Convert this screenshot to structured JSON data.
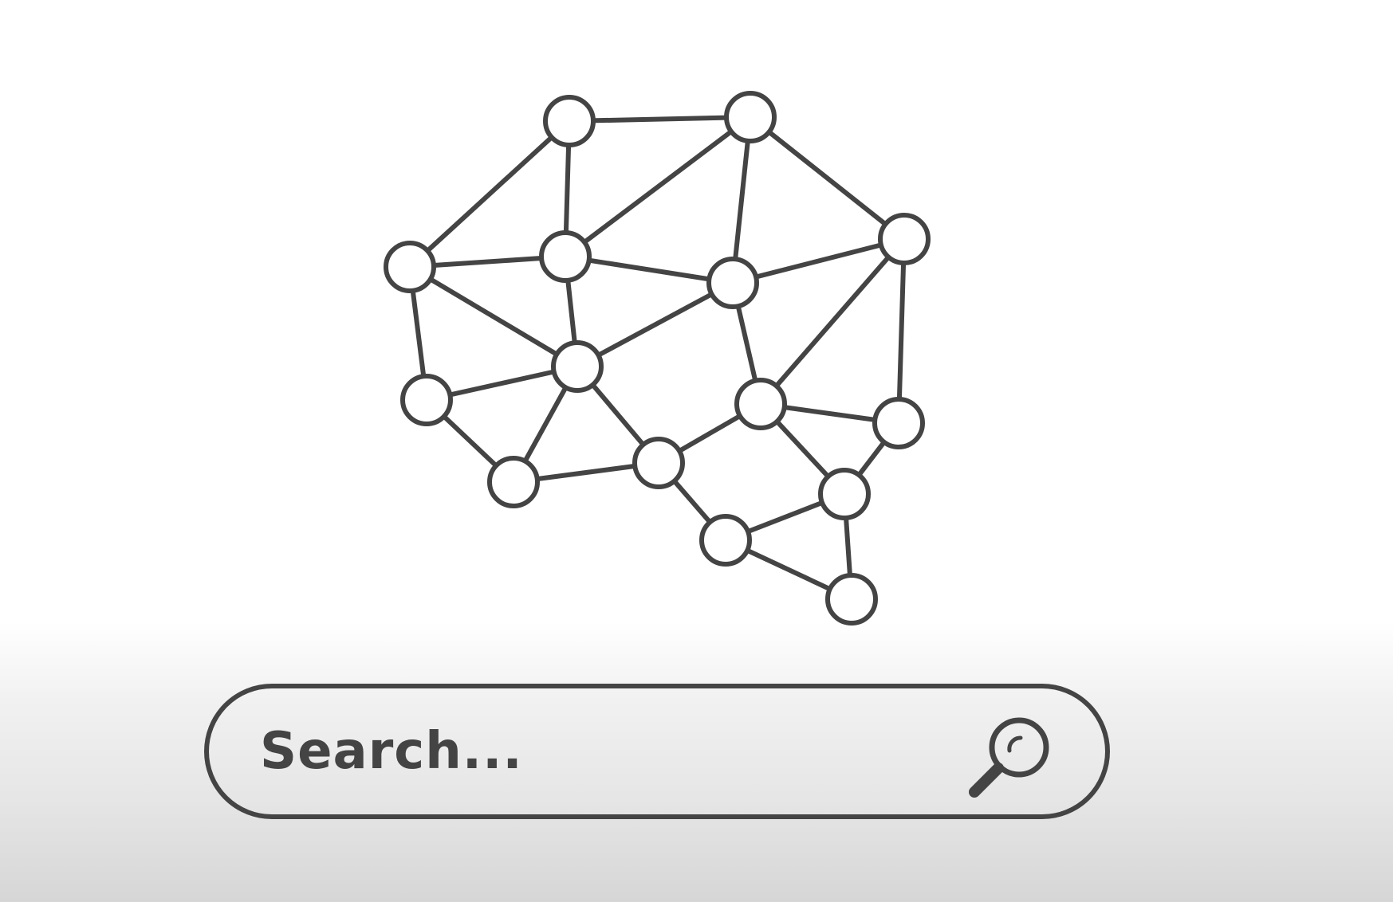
{
  "search": {
    "placeholder": "Search..."
  },
  "icons": {
    "network": "brain-network-icon",
    "search": "search-icon"
  },
  "colors": {
    "stroke": "#444444",
    "background": "#ffffff"
  }
}
